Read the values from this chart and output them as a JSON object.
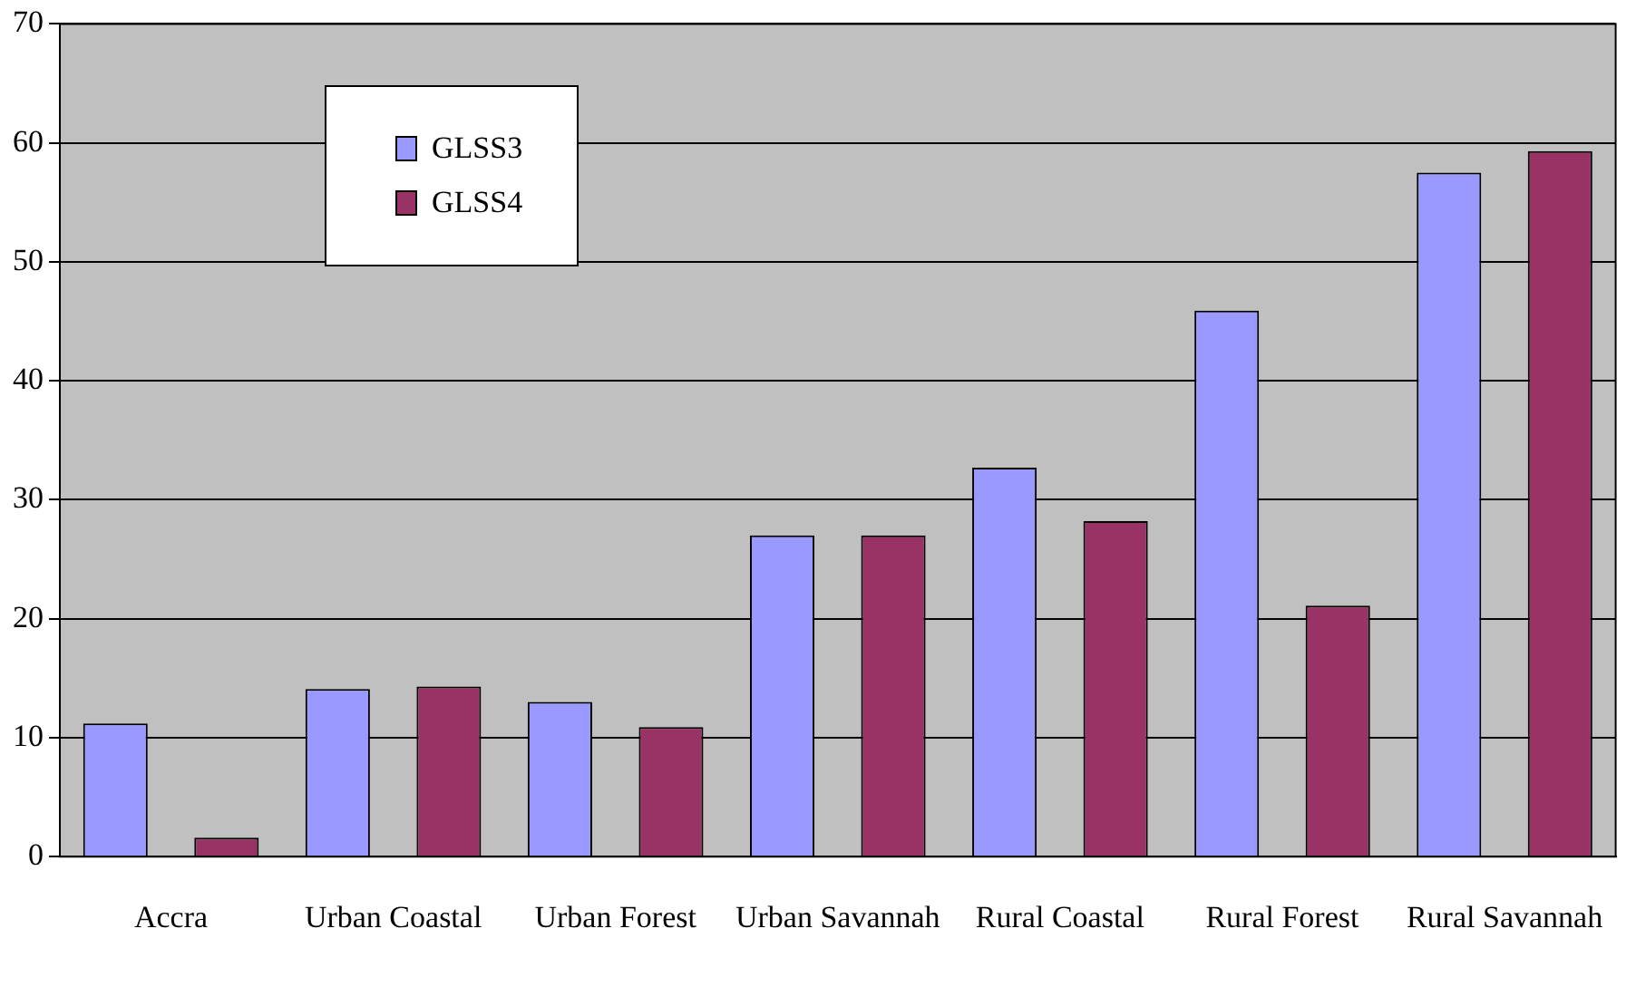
{
  "chart_data": {
    "type": "bar",
    "categories": [
      "Accra",
      "Urban Coastal",
      "Urban Forest",
      "Urban Savannah",
      "Rural Coastal",
      "Rural Forest",
      "Rural Savannah"
    ],
    "series": [
      {
        "name": "GLSS3",
        "color": "#9999ff",
        "values": [
          11.2,
          14.1,
          13.0,
          27.0,
          32.7,
          45.9,
          57.5
        ]
      },
      {
        "name": "GLSS4",
        "color": "#993366",
        "values": [
          1.6,
          14.3,
          10.9,
          27.0,
          28.2,
          21.1,
          59.3
        ]
      }
    ],
    "ylim": [
      0,
      70
    ],
    "yticks": [
      0,
      10,
      20,
      30,
      40,
      50,
      60,
      70
    ],
    "grid": "y",
    "legend": "top left"
  }
}
